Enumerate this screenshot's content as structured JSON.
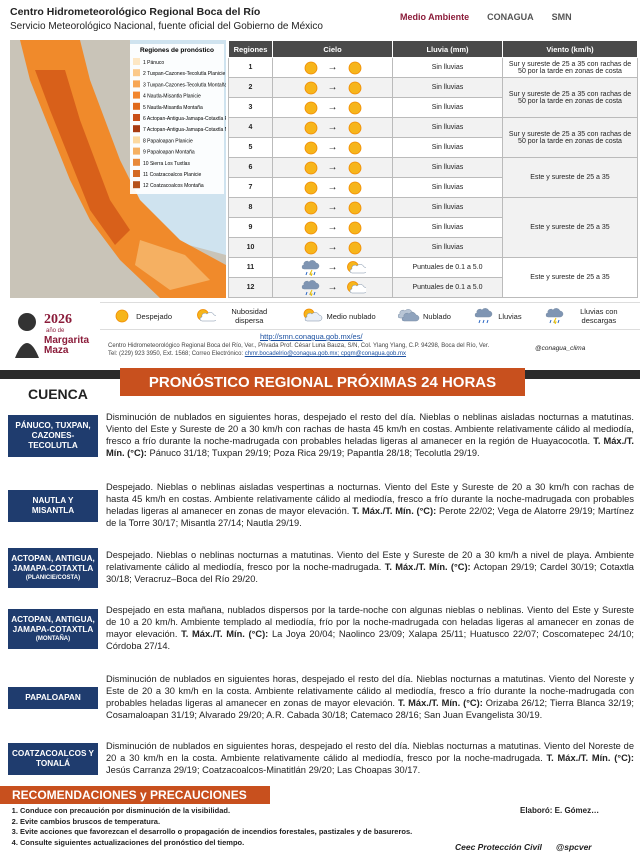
{
  "header": {
    "title": "Centro Hidrometeorológico Regional Boca del Río",
    "subtitle": "Servicio Meteorológico Nacional, fuente oficial del Gobierno de México",
    "logos": [
      "Medio Ambiente",
      "CONAGUA",
      "SMN"
    ]
  },
  "map": {
    "legend_title": "Regiones de pronóstico",
    "regions": [
      "1 Pánuco",
      "2 Tuxpan-Cazones-Tecolutla Planicie",
      "3 Tuxpan-Cazones-Tecolutla Montaña",
      "4 Nautla-Misantla Planicie",
      "5 Nautla-Misantla Montaña",
      "6 Actopan-Antigua-Jamapa-Cotaxtla Planicie",
      "7 Actopan-Antigua-Jamapa-Cotaxtla Montaña",
      "8 Papaloapan Planicie",
      "9 Papaloapan Montaña",
      "10 Sierra Los Tuxtlas",
      "11 Coatzacoalcos Planicie",
      "12 Coatzacoalcos Montaña"
    ]
  },
  "table": {
    "headers": [
      "Regiones",
      "Cielo",
      "Lluvia (mm)",
      "Viento (km/h)"
    ],
    "rows": [
      {
        "region": "1",
        "rain": "Sin lluvias",
        "wind": "Sur y sureste de 25 a 35 con rachas de 50 por la tarde en zonas de costa"
      },
      {
        "region": "2",
        "rain": "Sin lluvias",
        "wind": "Sur y sureste de 25 a 35 con rachas de 50 por la tarde en zonas de costa"
      },
      {
        "region": "3",
        "rain": "Sin lluvias"
      },
      {
        "region": "4",
        "rain": "Sin lluvias",
        "wind": "Sur y sureste de 25 a 35 con rachas de 50 por la tarde en zonas de costa"
      },
      {
        "region": "5",
        "rain": "Sin lluvias"
      },
      {
        "region": "6",
        "rain": "Sin lluvias",
        "wind": "Este y sureste de 25 a 35"
      },
      {
        "region": "7",
        "rain": "Sin lluvias"
      },
      {
        "region": "8",
        "rain": "Sin lluvias",
        "wind": "Este y sureste de 25 a 35"
      },
      {
        "region": "9",
        "rain": "Sin lluvias"
      },
      {
        "region": "10",
        "rain": "Sin lluvias"
      },
      {
        "region": "11",
        "rain": "Puntuales de 0.1 a 5.0",
        "wind": "Este y sureste de 25 a 35"
      },
      {
        "region": "12",
        "rain": "Puntuales de 0.1 a 5.0"
      }
    ]
  },
  "icon_legend": [
    "Despejado",
    "Nubosidad dispersa",
    "Medio nublado",
    "Nublado",
    "Lluvias",
    "Lluvias con descargas"
  ],
  "footer": {
    "year": "2026",
    "year_note": "año de",
    "name": "Margarita Maza",
    "link": "http://smn.conagua.gob.mx/es/",
    "address": "Centro Hidrometeorológico Regional Boca del Río, Ver., Privada Prof. César Luna Bauza, S/N, Col. Ylang Ylang, C.P. 94298, Boca del Río, Ver.",
    "contact": "Tel: (229) 923 3950, Ext. 1568; Correo Electrónico:",
    "emails": "chmr.bocadelrio@conagua.gob.mx; cpgm@conagua.gob.mx",
    "social": "@conagua_clima"
  },
  "forecast": {
    "title": "PRONÓSTICO REGIONAL PRÓXIMAS 24 HORAS",
    "column": "CUENCA",
    "entries": [
      {
        "name": "PÁNUCO, TUXPAN, CAZONES-TECOLUTLA",
        "text": "Disminución de nublados en siguientes horas, despejado el resto del día. Nieblas o neblinas aisladas nocturnas a matutinas. Viento del Este y Sureste de 20 a 30 km/h con rachas de hasta 45 km/h en costas. Ambiente relativamente cálido al mediodía, fresco a frío durante la noche-madrugada con probables heladas ligeras al amanecer en la región de Huayacocotla.",
        "temp_label": "T. Máx./T. Mín. (°C):",
        "temps": "Pánuco 31/18; Tuxpan 29/19; Poza Rica 29/19; Papantla 28/18; Tecolutla 29/19."
      },
      {
        "name": "NAUTLA Y MISANTLA",
        "text": "Despejado. Nieblas o neblinas aisladas vespertinas a nocturnas. Viento del Este y Sureste de 20 a 30 km/h con rachas de hasta 45 km/h en costas. Ambiente relativamente cálido al mediodía, fresco a frío durante la noche-madrugada con probables heladas ligeras al amanecer en zonas de mayor elevación.",
        "temp_label": "T. Máx./T. Mín. (°C):",
        "temps": "Perote 22/02; Vega de Alatorre 29/19; Martínez de la Torre 30/17; Misantla 27/14; Nautla 29/19."
      },
      {
        "name": "ACTOPAN, ANTIGUA, JAMAPA-COTAXTLA",
        "note": "(PLANICIE/COSTA)",
        "text": "Despejado. Nieblas o neblinas nocturnas a matutinas. Viento del Este y Sureste de 20 a 30 km/h a nivel de playa. Ambiente relativamente cálido al mediodía, fresco por la noche-madrugada.",
        "temp_label": "T. Máx./T. Mín. (°C):",
        "temps": "Actopan 29/19; Cardel 30/19; Cotaxtla 30/18; Veracruz–Boca del Río 29/20."
      },
      {
        "name": "ACTOPAN, ANTIGUA, JAMAPA-COTAXTLA",
        "note": "(MONTAÑA)",
        "text": "Despejado en esta mañana, nublados dispersos por la tarde-noche con algunas nieblas o neblinas. Viento del Este y Sureste de 10 a 20 km/h. Ambiente templado al mediodía, frío por la noche-madrugada con heladas ligeras al amanecer en zonas de mayor elevación.",
        "temp_label": "T. Máx./T. Mín. (°C):",
        "temps": "La Joya 20/04; Naolinco 23/09; Xalapa 25/11; Huatusco 22/07; Coscomatepec 24/10; Córdoba 27/14."
      },
      {
        "name": "PAPALOAPAN",
        "text": "Disminución de nublados en siguientes horas, despejado el resto del día. Nieblas nocturnas a matutinas. Viento del Noreste y Este de 20 a 30 km/h en la costa. Ambiente relativamente cálido al mediodía, fresco a frío durante la noche-madrugada con probables heladas ligeras al amanecer en zonas de mayor elevación.",
        "temp_label": "T. Máx./T. Mín. (°C):",
        "temps": "Orizaba 26/12; Tierra Blanca 32/19; Cosamaloapan 31/19; Alvarado 29/20; A.R. Cabada 30/18; Catemaco 28/16; San Juan Evangelista 30/19."
      },
      {
        "name": "COATZACOALCOS Y TONALÁ",
        "text": "Disminución de nublados en siguientes horas, despejado el resto del día. Nieblas nocturnas a matutinas. Viento del Noreste de 20 a 30 km/h en la costa. Ambiente relativamente cálido al mediodía, fresco por la noche-madrugada.",
        "temp_label": "T. Máx./T. Mín. (°C):",
        "temps": "Jesús Carranza 29/19; Coatzacoalcos-Minatitlán 29/20; Las Choapas 30/17."
      }
    ]
  },
  "recommendations": {
    "title": "RECOMENDACIONES y PRECAUCIONES",
    "items": [
      "Conduce con precaución por disminución de la visibilidad.",
      "Evite cambios bruscos de temperatura.",
      "Evite acciones que favorezcan el desarrollo o propagación de incendios forestales, pastizales y de basureros.",
      "Consulte siguientes actualizaciones del pronóstico del tiempo."
    ],
    "author": "Elaboró: E. Gómez…",
    "social": [
      "Ceec Protección Civil",
      "@spcver"
    ]
  }
}
